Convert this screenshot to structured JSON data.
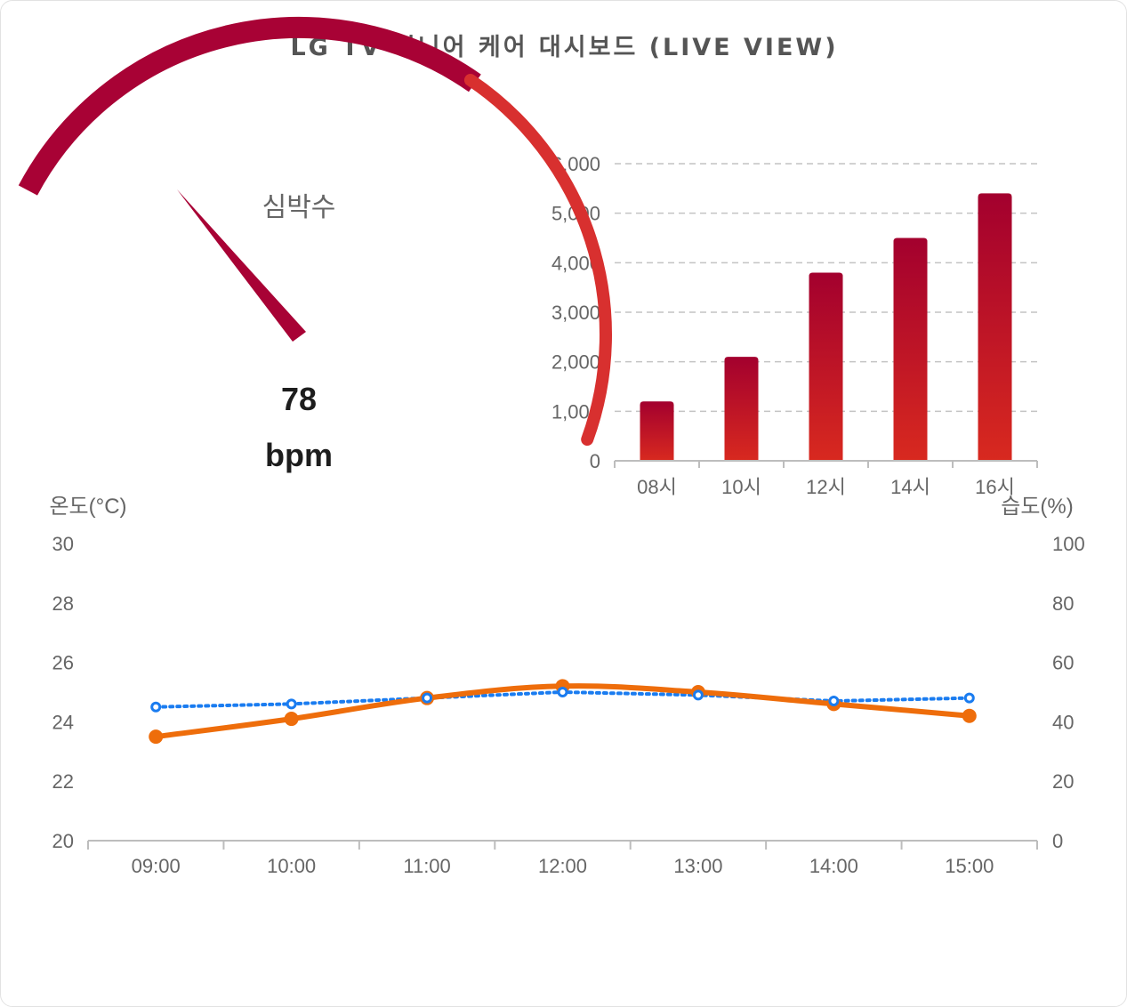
{
  "dashboard": {
    "title": "LG TV 시니어 케어 대시보드 (LIVE VIEW)"
  },
  "colors": {
    "gauge_dark": "#a80235",
    "gauge_red": "#d8302f",
    "bar_top": "#a3002e",
    "bar_bottom": "#d8291f",
    "temp": "#ee6d0b",
    "humidity": "#1a7cf0"
  },
  "chart_data": [
    {
      "type": "gauge",
      "title": "심박수",
      "value": 78,
      "unit": "bpm"
    },
    {
      "type": "bar",
      "categories": [
        "08시",
        "10시",
        "12시",
        "14시",
        "16시"
      ],
      "values": [
        1200,
        2100,
        3800,
        4500,
        5400
      ],
      "ylim": [
        0,
        6000
      ],
      "yticks": [
        "0",
        "1,000",
        "2,000",
        "3,000",
        "4,000",
        "5,000",
        "6,000"
      ],
      "grid": true
    },
    {
      "type": "line",
      "x": [
        "09:00",
        "10:00",
        "11:00",
        "12:00",
        "13:00",
        "14:00",
        "15:00"
      ],
      "ylabel_left": "온도(°C)",
      "ylabel_right": "습도(%)",
      "ylim_left": [
        20,
        30
      ],
      "ylim_right": [
        0,
        100
      ],
      "yticks_left": [
        "20",
        "22",
        "24",
        "26",
        "28",
        "30"
      ],
      "yticks_right": [
        "0",
        "20",
        "40",
        "60",
        "80",
        "100"
      ],
      "series": [
        {
          "axis": "left",
          "style": "solid",
          "values": [
            23.5,
            24.1,
            24.8,
            25.2,
            25.0,
            24.6,
            24.2
          ]
        },
        {
          "axis": "right",
          "style": "dotted",
          "values": [
            45,
            46,
            48,
            50,
            49,
            47,
            48
          ]
        }
      ]
    }
  ]
}
